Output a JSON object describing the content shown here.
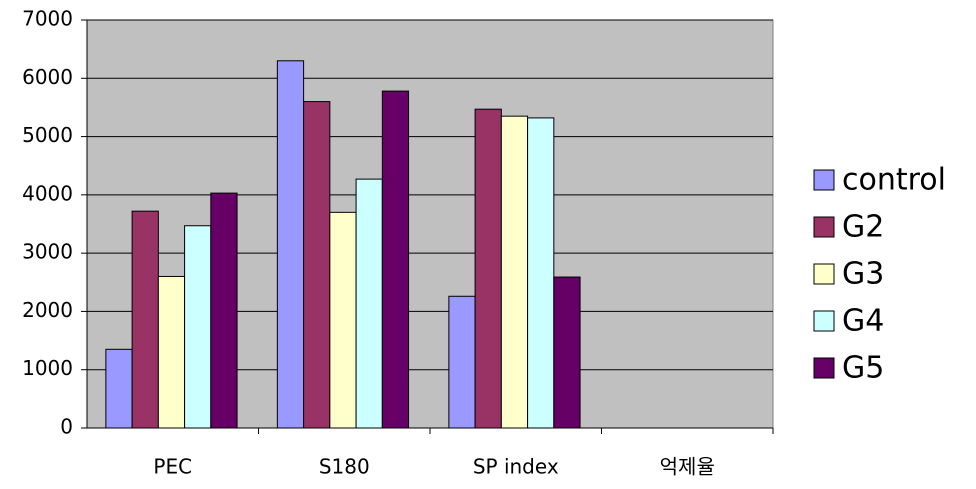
{
  "chart_data": {
    "type": "bar",
    "categories": [
      "PEC",
      "S180",
      "SP index",
      "억제율"
    ],
    "series": [
      {
        "name": "control",
        "color": "#9999ff",
        "values": [
          1350,
          6300,
          2260,
          null
        ]
      },
      {
        "name": "G2",
        "color": "#993366",
        "values": [
          3720,
          5600,
          5470,
          null
        ]
      },
      {
        "name": "G3",
        "color": "#ffffcc",
        "values": [
          2600,
          3700,
          5350,
          null
        ]
      },
      {
        "name": "G4",
        "color": "#ccffff",
        "values": [
          3470,
          4270,
          5320,
          null
        ]
      },
      {
        "name": "G5",
        "color": "#660066",
        "values": [
          4030,
          5780,
          2590,
          null
        ]
      }
    ],
    "ylim": [
      0,
      7000
    ],
    "yticks": [
      0,
      1000,
      2000,
      3000,
      4000,
      5000,
      6000,
      7000
    ],
    "grid": true,
    "legend": "right",
    "plot_background": "#c0c0c0"
  }
}
